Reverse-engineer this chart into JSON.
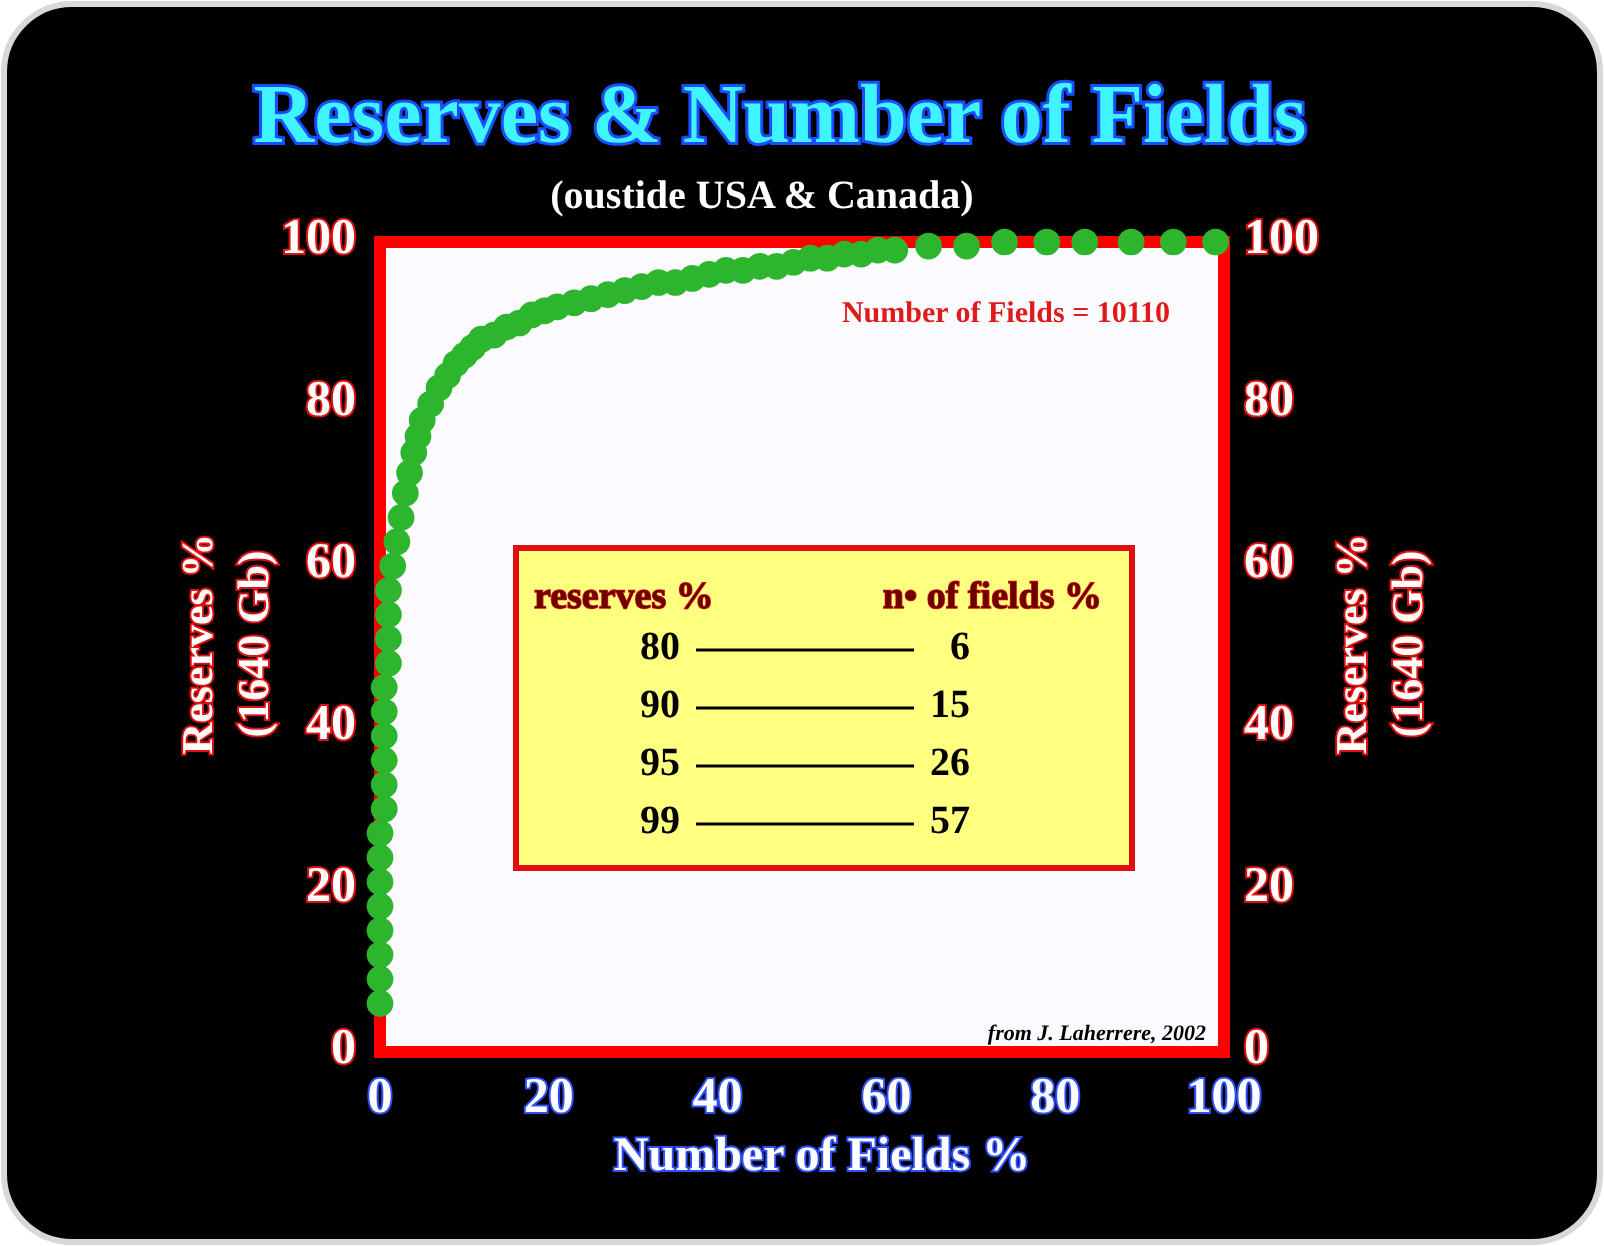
{
  "chart_data": {
    "type": "scatter",
    "title": "Reserves & Number of Fields",
    "subtitle": "(oustide USA & Canada)",
    "xlabel": "Number of Fields %",
    "ylabel": "Reserves %\n(1640 Gb)",
    "y2label": "Reserves %\n(1640 Gb)",
    "annotations": [
      "Number of Fields = 10110",
      "reserves %",
      "n• of fields %",
      "80",
      "6",
      "90",
      "15",
      "95",
      "26",
      "99",
      "57",
      "from J. Laherrere, 2002"
    ],
    "x": [
      0,
      0,
      0,
      0,
      0,
      0,
      0,
      0,
      0.5,
      0.5,
      0.5,
      0.5,
      0.5,
      0.5,
      1,
      1,
      1,
      1,
      1.5,
      2,
      2.5,
      3,
      3.5,
      4,
      4.5,
      5,
      6,
      7,
      8,
      9,
      10,
      11,
      12,
      13.5,
      15,
      16.5,
      18,
      19.5,
      21,
      23,
      25,
      27,
      29,
      31,
      33,
      35,
      37,
      39,
      41,
      43,
      45,
      47,
      49,
      51,
      53,
      55,
      57,
      59,
      61,
      65,
      69.5,
      74,
      79,
      83.5,
      89,
      94,
      99
    ],
    "values": [
      6,
      9,
      12,
      15,
      18,
      21,
      24,
      27,
      30,
      33,
      36,
      39,
      42,
      45,
      48,
      51,
      54,
      57,
      60,
      63,
      66,
      69,
      71.5,
      74,
      76,
      78,
      80,
      82,
      83.5,
      85,
      86,
      87,
      88,
      88.5,
      89.5,
      90,
      91,
      91.5,
      92,
      92.5,
      93,
      93.5,
      94,
      94.5,
      95,
      95,
      95.5,
      96,
      96.5,
      96.5,
      97,
      97,
      97.5,
      98,
      98,
      98.5,
      98.5,
      99,
      99,
      99.5,
      99.5,
      100,
      100,
      100,
      100,
      100,
      100
    ],
    "color": "#2db52d",
    "marker": "circle",
    "xlim": [
      0,
      100
    ],
    "ylim": [
      0,
      100
    ],
    "xticks": [
      0,
      20,
      40,
      60,
      80,
      100
    ],
    "yticks": [
      0,
      20,
      40,
      60,
      80,
      100
    ],
    "y2lim": [
      0,
      100
    ],
    "y2ticks": [
      0,
      20,
      40,
      60,
      80,
      100
    ]
  }
}
